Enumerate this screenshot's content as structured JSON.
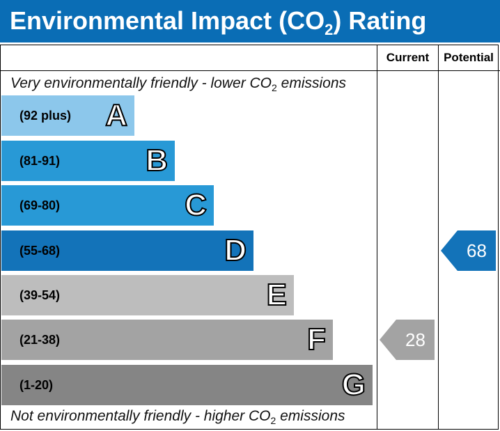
{
  "header": {
    "title_main": "Environmental Impact (CO",
    "title_sub": "2",
    "title_end": ") Rating",
    "background": "#0a6db5"
  },
  "columns": {
    "current": "Current",
    "potential": "Potential"
  },
  "notes": {
    "top_pre": "Very environmentally friendly - lower CO",
    "top_sub": "2",
    "top_post": " emissions",
    "bottom_pre": "Not environmentally friendly - higher CO",
    "bottom_sub": "2",
    "bottom_post": " emissions"
  },
  "chart_data": {
    "type": "bar",
    "bands": [
      {
        "letter": "A",
        "range": "(92 plus)",
        "color": "#8cc7eb"
      },
      {
        "letter": "B",
        "range": "(81-91)",
        "color": "#2899d6"
      },
      {
        "letter": "C",
        "range": "(69-80)",
        "color": "#2899d6"
      },
      {
        "letter": "D",
        "range": "(55-68)",
        "color": "#1373b9"
      },
      {
        "letter": "E",
        "range": "(39-54)",
        "color": "#bdbdbd"
      },
      {
        "letter": "F",
        "range": "(21-38)",
        "color": "#a3a3a3"
      },
      {
        "letter": "G",
        "range": "(1-20)",
        "color": "#858585"
      }
    ],
    "current": {
      "value": "28",
      "band": "F",
      "color": "#a3a3a3"
    },
    "potential": {
      "value": "68",
      "band": "D",
      "color": "#1373b9"
    }
  }
}
